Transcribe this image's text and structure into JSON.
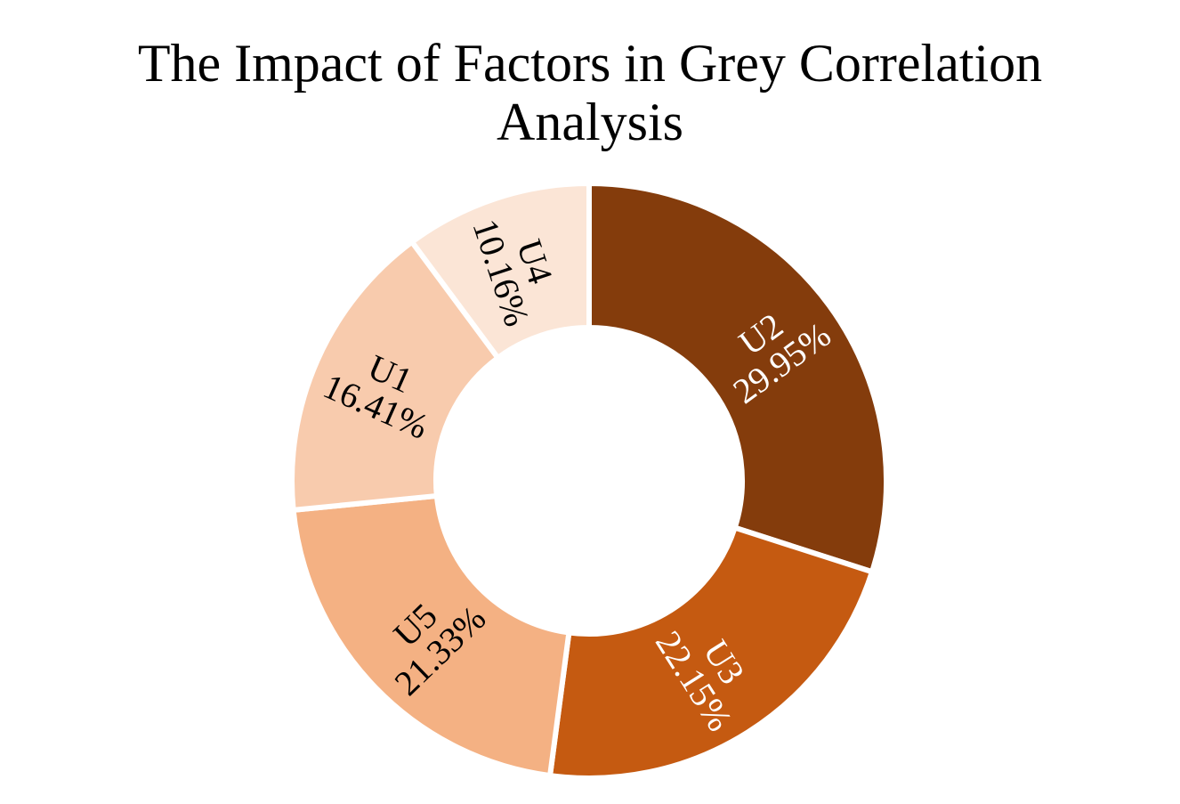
{
  "chart_data": {
    "type": "pie",
    "title_lines": [
      "The Impact of Factors in Grey Correlation",
      "Analysis"
    ],
    "donut": true,
    "slices": [
      {
        "label": "U2",
        "value": 29.95,
        "value_label": "29.95%",
        "color": "#843C0C",
        "text_color": "#FFFFFF"
      },
      {
        "label": "U3",
        "value": 22.15,
        "value_label": "22.15%",
        "color": "#C55A11",
        "text_color": "#FFFFFF"
      },
      {
        "label": "U5",
        "value": 21.33,
        "value_label": "21.33%",
        "color": "#F4B183",
        "text_color": "#000000"
      },
      {
        "label": "U1",
        "value": 16.41,
        "value_label": "16.41%",
        "color": "#F8CBAD",
        "text_color": "#000000"
      },
      {
        "label": "U4",
        "value": 10.16,
        "value_label": "10.16%",
        "color": "#FBE5D6",
        "text_color": "#000000"
      }
    ],
    "start": "top",
    "direction": "clockwise",
    "legend": "none"
  }
}
